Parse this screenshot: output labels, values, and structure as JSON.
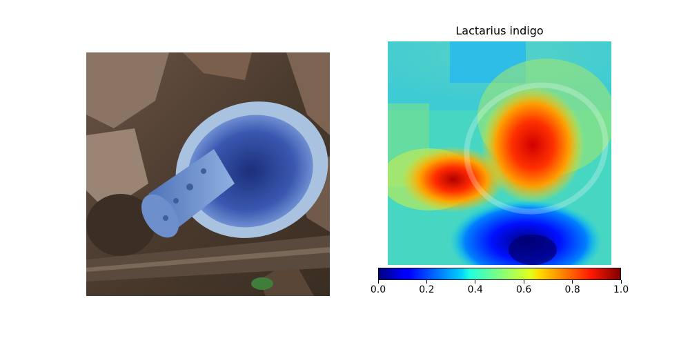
{
  "figure": {
    "title": "Lactarius indigo",
    "colorbar": {
      "ticks": [
        "0.0",
        "0.2",
        "0.4",
        "0.6",
        "0.8",
        "1.0"
      ],
      "range": [
        0.0,
        1.0
      ],
      "colormap": "jet"
    },
    "panels": {
      "left": "original-photo",
      "right": "saliency-heatmap-overlay"
    },
    "colors": {
      "jet_low": "#00007f",
      "jet_mid": "#7fff7f",
      "jet_high": "#7f0000"
    }
  }
}
